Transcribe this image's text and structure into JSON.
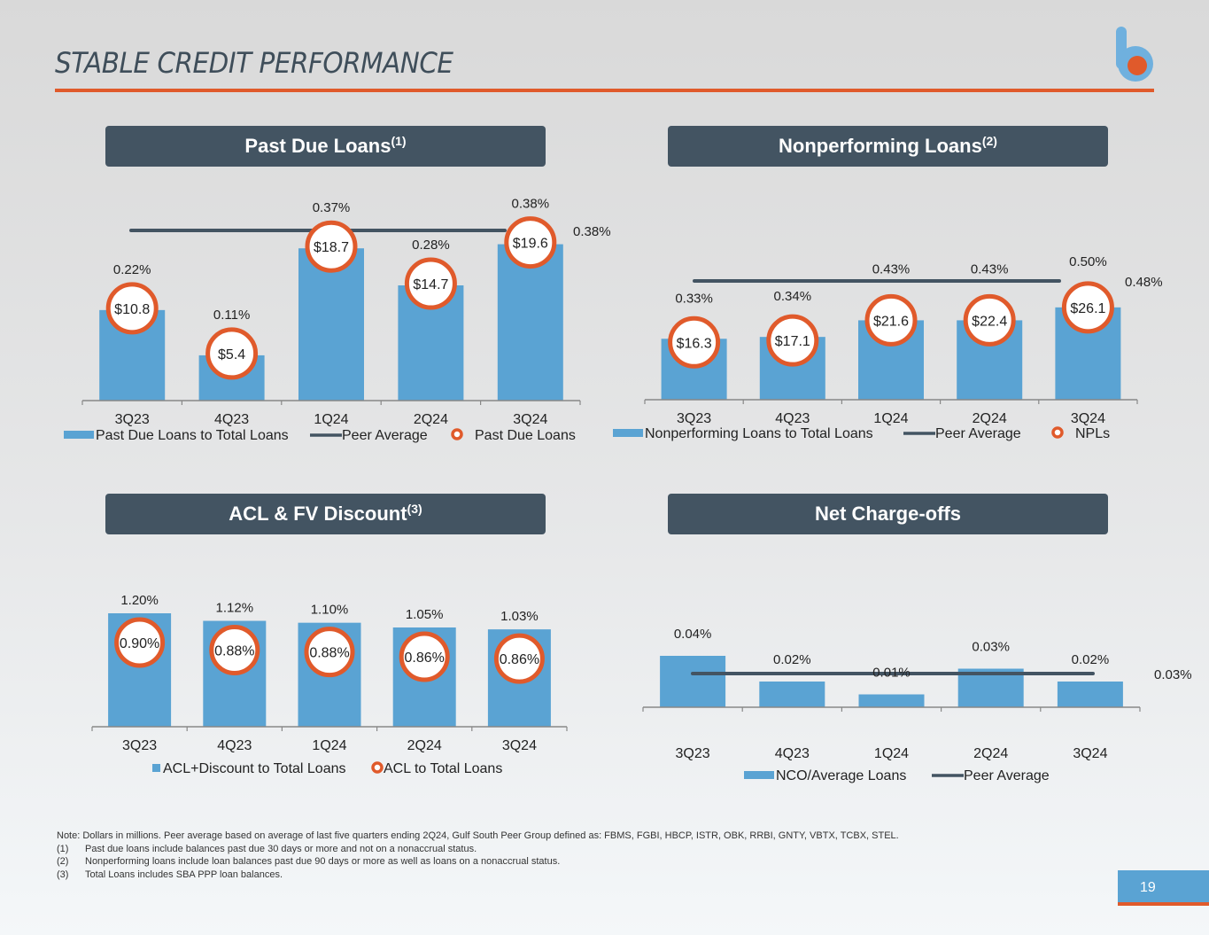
{
  "header": {
    "title": "STABLE CREDIT PERFORMANCE",
    "logo_icon": "b-logo-icon"
  },
  "colors": {
    "bar": "#5aa3d3",
    "peer_line": "#435462",
    "circle_ring": "#e05a2b",
    "accent": "#e05a2b",
    "header_bg": "#435462"
  },
  "panels": [
    {
      "title": "Past Due Loans",
      "sup": "(1)"
    },
    {
      "title": "Nonperforming Loans",
      "sup": "(2)"
    },
    {
      "title": "ACL & FV Discount",
      "sup": "(3)"
    },
    {
      "title": "Net Charge-offs",
      "sup": ""
    }
  ],
  "chart_data": [
    {
      "type": "bar",
      "title": "Past Due Loans(1)",
      "categories": [
        "3Q23",
        "4Q23",
        "1Q24",
        "2Q24",
        "3Q24"
      ],
      "series": [
        {
          "name": "Past Due Loans to Total Loans",
          "kind": "bar",
          "values": [
            0.22,
            0.11,
            0.37,
            0.28,
            0.38
          ],
          "labels": [
            "0.22%",
            "0.11%",
            "0.37%",
            "0.28%",
            "0.38%"
          ]
        },
        {
          "name": "Peer Average",
          "kind": "line",
          "value": 0.38,
          "label": "0.38%"
        },
        {
          "name": "Past Due Loans",
          "kind": "circle",
          "values": [
            10.8,
            5.4,
            18.7,
            14.7,
            19.6
          ],
          "labels": [
            "$10.8",
            "$5.4",
            "$18.7",
            "$14.7",
            "$19.6"
          ]
        }
      ],
      "legend": [
        "Past Due Loans to Total Loans",
        "Peer Average",
        "Past Due Loans"
      ],
      "legend_position": "bottom",
      "ylim": [
        0,
        0.42
      ]
    },
    {
      "type": "bar",
      "title": "Nonperforming Loans(2)",
      "categories": [
        "3Q23",
        "4Q23",
        "1Q24",
        "2Q24",
        "3Q24"
      ],
      "series": [
        {
          "name": "Nonperforming Loans to Total Loans",
          "kind": "bar",
          "values": [
            0.33,
            0.34,
            0.43,
            0.43,
            0.5
          ],
          "labels": [
            "0.33%",
            "0.34%",
            "0.43%",
            "0.43%",
            "0.50%"
          ]
        },
        {
          "name": "Peer Average",
          "kind": "line",
          "value": 0.48,
          "label": "0.48%"
        },
        {
          "name": "NPLs",
          "kind": "circle",
          "values": [
            16.3,
            17.1,
            21.6,
            22.4,
            26.1
          ],
          "labels": [
            "$16.3",
            "$17.1",
            "$21.6",
            "$22.4",
            "$26.1"
          ]
        }
      ],
      "legend": [
        "Nonperforming Loans to Total Loans",
        "Peer Average",
        "NPLs"
      ],
      "legend_position": "bottom",
      "ylim": [
        0,
        0.72
      ]
    },
    {
      "type": "bar",
      "title": "ACL & FV Discount(3)",
      "categories": [
        "3Q23",
        "4Q23",
        "1Q24",
        "2Q24",
        "3Q24"
      ],
      "series": [
        {
          "name": "ACL+Discount to Total Loans",
          "kind": "bar",
          "values": [
            1.2,
            1.12,
            1.1,
            1.05,
            1.03
          ],
          "labels": [
            "1.20%",
            "1.12%",
            "1.10%",
            "1.05%",
            "1.03%"
          ]
        },
        {
          "name": "ACL to Total Loans",
          "kind": "circle",
          "values": [
            0.9,
            0.88,
            0.88,
            0.86,
            0.86
          ],
          "labels": [
            "0.90%",
            "0.88%",
            "0.88%",
            "0.86%",
            "0.86%"
          ]
        }
      ],
      "legend": [
        "ACL+Discount to Total Loans",
        "ACL to Total Loans"
      ],
      "legend_position": "bottom",
      "ylim": [
        0,
        1.2
      ]
    },
    {
      "type": "bar",
      "title": "Net Charge-offs",
      "categories": [
        "3Q23",
        "4Q23",
        "1Q24",
        "2Q24",
        "3Q24"
      ],
      "series": [
        {
          "name": "NCO/Average Loans",
          "kind": "bar",
          "values": [
            0.04,
            0.02,
            0.01,
            0.03,
            0.02
          ],
          "labels": [
            "0.04%",
            "0.02%",
            "0.01%",
            "0.03%",
            "0.02%"
          ]
        },
        {
          "name": "Peer Average",
          "kind": "line",
          "value": 0.03,
          "label": "0.03%"
        }
      ],
      "legend": [
        "NCO/Average Loans",
        "Peer Average"
      ],
      "legend_position": "bottom",
      "ylim": [
        0,
        0.04
      ]
    }
  ],
  "notes": {
    "note": "Note: Dollars in millions. Peer average based on average of last five quarters ending 2Q24, Gulf South Peer Group defined as: FBMS, FGBI, HBCP, ISTR, OBK, RRBI, GNTY, VBTX, TCBX, STEL.",
    "footnotes": [
      {
        "num": "(1)",
        "text": "Past due loans include balances past due 30 days or more and not on a nonaccrual status."
      },
      {
        "num": "(2)",
        "text": "Nonperforming loans include loan balances past due 90 days or more as well as loans on a nonaccrual status."
      },
      {
        "num": "(3)",
        "text": "Total Loans includes SBA PPP loan balances."
      }
    ]
  },
  "page_number": "19"
}
